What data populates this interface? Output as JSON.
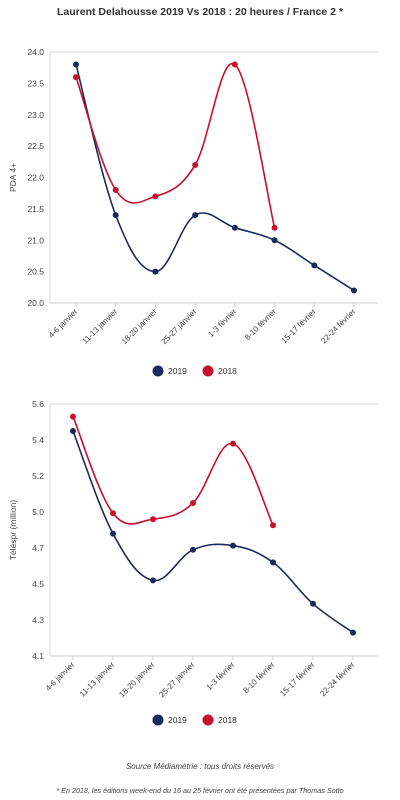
{
  "title": "Laurent Delahousse 2019 Vs 2018 : 20 heures / France 2 *",
  "source_note": "Source Médiamétrie : tous droits réservés",
  "footnote": "* En 2018, les éditions week-end du 16 au 25 février ont été présentées par Thomas Sotto",
  "colors": {
    "2019": "#1b2a5e",
    "2018": "#c8102e"
  },
  "chart_data": [
    {
      "type": "line",
      "ylabel": "PDA 4+",
      "categories": [
        "4-6 janvier",
        "11-13 janvier",
        "18-20 janvier",
        "25-27 janvier",
        "1-3 février",
        "8-10 février",
        "15-17 février",
        "22-24 février"
      ],
      "yticks": [
        "20.0",
        "20.5",
        "21.0",
        "21.5",
        "22.0",
        "22.5",
        "23.0",
        "23.5",
        "24.0"
      ],
      "ylim": [
        20.0,
        24.0
      ],
      "legend_position": "bottom-center",
      "series": [
        {
          "name": "2019",
          "values": [
            23.8,
            21.4,
            20.5,
            21.4,
            21.2,
            21.0,
            20.6,
            20.2
          ]
        },
        {
          "name": "2018",
          "values": [
            23.6,
            21.8,
            21.7,
            22.2,
            23.8,
            21.2,
            null,
            null
          ]
        }
      ]
    },
    {
      "type": "line",
      "ylabel": "Téléspr (million)",
      "categories": [
        "4-6 janvier",
        "11-13 janvier",
        "18-20 janvier",
        "25-27 janvier",
        "1-3 février",
        "8-10 février",
        "15-17 février",
        "22-24 février"
      ],
      "yticks": [
        "4.1",
        "4.3",
        "4.5",
        "4.7",
        "5.0",
        "5.2",
        "5.4",
        "5.6"
      ],
      "ylim": [
        4.1,
        5.6
      ],
      "legend_position": "bottom-center",
      "series": [
        {
          "name": "2019",
          "values": [
            5.45,
            4.82,
            4.52,
            4.69,
            4.72,
            4.62,
            4.39,
            4.23
          ]
        },
        {
          "name": "2018",
          "values": [
            5.53,
            4.99,
            4.94,
            5.05,
            5.38,
            4.89,
            null,
            null
          ]
        }
      ]
    }
  ]
}
